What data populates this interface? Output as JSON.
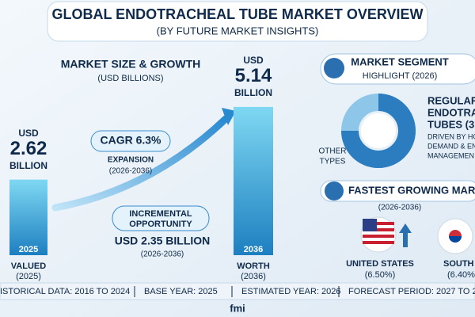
{
  "header": {
    "title": "GLOBAL ENDOTRACHEAL TUBE MARKET OVERVIEW",
    "subtitle": "(BY FUTURE MARKET INSIGHTS)"
  },
  "market_size": {
    "title": "MARKET SIZE & GROWTH",
    "unit": "(USD BILLIONS)",
    "bars": [
      {
        "currency": "USD",
        "value": 2.62,
        "unit_label": "BILLION",
        "year": "2025",
        "caption": "VALUED",
        "period": "(2025)"
      },
      {
        "currency": "USD",
        "value": 5.14,
        "unit_label": "BILLION",
        "year": "2036",
        "caption": "WORTH",
        "period": "(2036)"
      }
    ],
    "cagr": {
      "label": "CAGR 6.3%",
      "caption": "EXPANSION",
      "period": "(2026-2036)"
    },
    "incremental": {
      "label_lines": [
        "INCREMENTAL",
        "OPPORTUNITY"
      ],
      "value": "USD 2.35 BILLION",
      "period": "(2026-2036)"
    }
  },
  "segment": {
    "title_lines": [
      "MARKET SEGMENT",
      "HIGHLIGHT (2026)"
    ],
    "leader_lines": [
      "REGULAR",
      "ENDOTRA",
      "TUBES (3"
    ],
    "driver_lines": [
      "DRIVEN BY HO",
      "DEMAND & EN",
      "MANAGEMEN"
    ],
    "other_lines": [
      "OTHER",
      "TYPES"
    ]
  },
  "fastest": {
    "title": "FASTEST GROWING MAR",
    "period": "(2026-2036)",
    "countries": [
      {
        "name": "UNITED STATES",
        "rate": "(6.50%)"
      },
      {
        "name": "SOUTH KO",
        "rate": "(6.40%"
      }
    ]
  },
  "footer": {
    "items": [
      "ISTORICAL DATA: 2016 TO 2024",
      "BASE YEAR: 2025",
      "ESTIMATED YEAR: 2026",
      "FORECAST PERIOD: 2027 TO 20"
    ],
    "logo": "fmi"
  }
}
